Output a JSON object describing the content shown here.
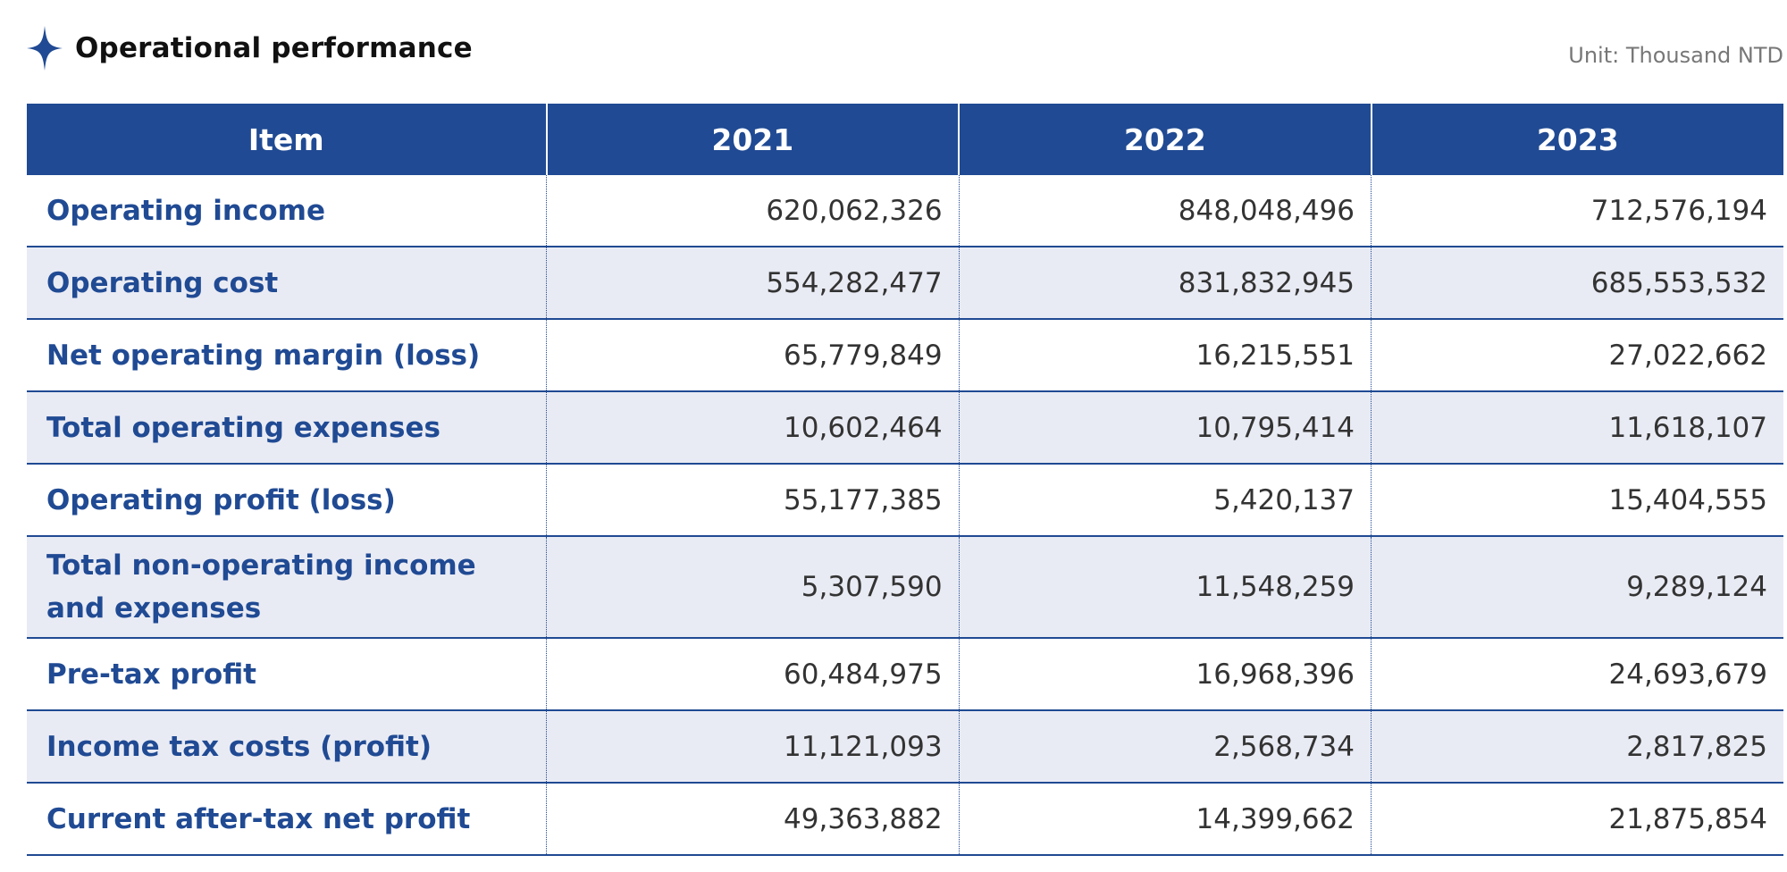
{
  "header": {
    "title": "Operational performance",
    "icon": "four-point-star-icon",
    "unit": "Unit: Thousand NTD"
  },
  "colors": {
    "accent": "#204a93",
    "row_shade": "#e9ebf4"
  },
  "table": {
    "columns": [
      "Item",
      "2021",
      "2022",
      "2023"
    ],
    "rows": [
      {
        "item": "Operating income",
        "values": [
          "620,062,326",
          "848,048,496",
          "712,576,194"
        ]
      },
      {
        "item": "Operating cost",
        "values": [
          "554,282,477",
          "831,832,945",
          "685,553,532"
        ]
      },
      {
        "item": "Net operating margin (loss)",
        "values": [
          "65,779,849",
          "16,215,551",
          "27,022,662"
        ]
      },
      {
        "item": "Total operating expenses",
        "values": [
          "10,602,464",
          "10,795,414",
          "11,618,107"
        ]
      },
      {
        "item": "Operating profit (loss)",
        "values": [
          "55,177,385",
          "5,420,137",
          "15,404,555"
        ]
      },
      {
        "item": "Total non-operating income and expenses",
        "values": [
          "5,307,590",
          "11,548,259",
          "9,289,124"
        ]
      },
      {
        "item": "Pre-tax profit",
        "values": [
          "60,484,975",
          "16,968,396",
          "24,693,679"
        ]
      },
      {
        "item": "Income tax costs (profit)",
        "values": [
          "11,121,093",
          "2,568,734",
          "2,817,825"
        ]
      },
      {
        "item": "Current after-tax net profit",
        "values": [
          "49,363,882",
          "14,399,662",
          "21,875,854"
        ]
      }
    ]
  }
}
